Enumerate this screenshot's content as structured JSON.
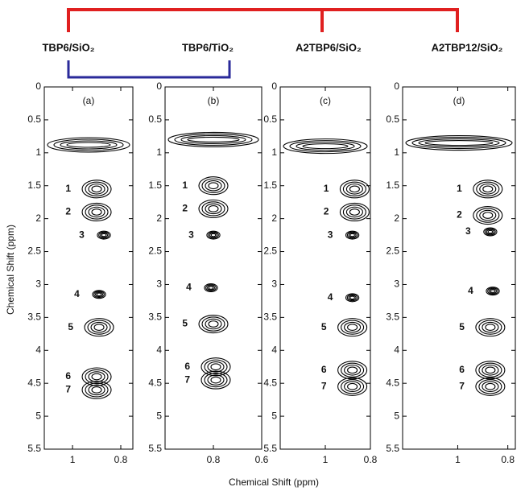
{
  "header": {
    "groups": [
      "TBP6/SiO₂",
      "TBP6/TiO₂",
      "A2TBP6/SiO₂",
      "A2TBP12/SiO₂"
    ],
    "xlabel": "Chemical Shift (ppm)",
    "ylabel": "Chemical Shift (ppm)"
  },
  "chart_data": [
    {
      "type": "contour",
      "title": "(a)",
      "xlim": [
        1.117,
        0.75
      ],
      "xticks": [
        1,
        0.8
      ],
      "ylim": [
        0,
        5.5
      ],
      "yticks": [
        0,
        0.5,
        1,
        1.5,
        2,
        2.5,
        3,
        3.5,
        4,
        4.5,
        5,
        5.5
      ],
      "y_inverted": true,
      "ridge": 0.88,
      "peaks": {
        "labels": [
          "1",
          "2",
          "3",
          "4",
          "5",
          "6",
          "7"
        ],
        "x": [
          0.9,
          0.9,
          0.87,
          0.89,
          0.89,
          0.9,
          0.9
        ],
        "y": [
          1.55,
          1.9,
          2.25,
          3.15,
          3.65,
          4.4,
          4.6
        ]
      }
    },
    {
      "type": "contour",
      "title": "(b)",
      "xlim": [
        1.0,
        0.6
      ],
      "xticks": [
        0.8,
        0.6
      ],
      "ylim": [
        0,
        5.5
      ],
      "yticks": [
        0,
        0.5,
        1,
        1.5,
        2,
        2.5,
        3,
        3.5,
        4,
        4.5,
        5,
        5.5
      ],
      "y_inverted": true,
      "ridge": 0.8,
      "peaks": {
        "labels": [
          "1",
          "2",
          "3",
          "4",
          "5",
          "6",
          "7"
        ],
        "x": [
          0.8,
          0.8,
          0.8,
          0.81,
          0.8,
          0.79,
          0.79
        ],
        "y": [
          1.5,
          1.85,
          2.25,
          3.05,
          3.6,
          4.25,
          4.45
        ]
      }
    },
    {
      "type": "contour",
      "title": "(c)",
      "xlim": [
        1.2,
        0.8
      ],
      "xticks": [
        1,
        0.8
      ],
      "ylim": [
        0,
        5.5
      ],
      "yticks": [
        0,
        0.5,
        1,
        1.5,
        2,
        2.5,
        3,
        3.5,
        4,
        4.5,
        5,
        5.5
      ],
      "y_inverted": true,
      "ridge": 0.9,
      "peaks": {
        "labels": [
          "1",
          "2",
          "3",
          "4",
          "5",
          "6",
          "7"
        ],
        "x": [
          0.87,
          0.87,
          0.88,
          0.88,
          0.88,
          0.88,
          0.88
        ],
        "y": [
          1.55,
          1.9,
          2.25,
          3.2,
          3.65,
          4.3,
          4.55
        ]
      }
    },
    {
      "type": "contour",
      "title": "(d)",
      "xlim": [
        1.22,
        0.77
      ],
      "xticks": [
        1,
        0.8
      ],
      "ylim": [
        0,
        5.5
      ],
      "yticks": [
        0,
        0.5,
        1,
        1.5,
        2,
        2.5,
        3,
        3.5,
        4,
        4.5,
        5,
        5.5
      ],
      "y_inverted": true,
      "ridge": 0.85,
      "peaks": {
        "labels": [
          "1",
          "2",
          "3",
          "4",
          "5",
          "6",
          "7"
        ],
        "x": [
          0.88,
          0.88,
          0.87,
          0.86,
          0.87,
          0.87,
          0.87
        ],
        "y": [
          1.55,
          1.95,
          2.2,
          3.1,
          3.65,
          4.3,
          4.55
        ]
      }
    }
  ]
}
